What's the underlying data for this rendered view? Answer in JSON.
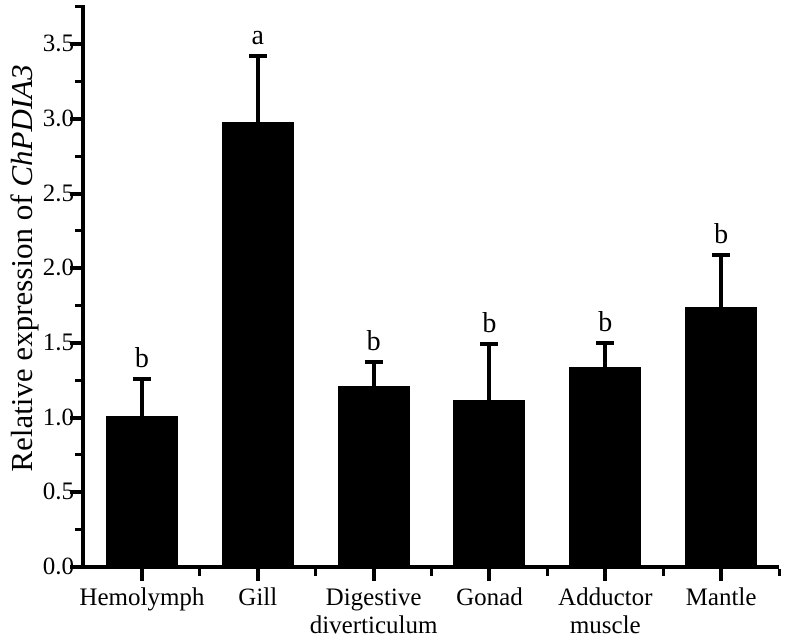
{
  "figure": {
    "background": "#ffffff",
    "axis_color": "#000000"
  },
  "chart_data": {
    "type": "bar",
    "title": "",
    "xlabel": "",
    "ylabel": "Relative expression of ChPDIA3",
    "ylabel_prefix": "Relative expression of ",
    "ylabel_italic": "ChPDIA3",
    "categories": [
      "Hemolymph",
      "Gill",
      "Digestive diverticulum",
      "Gonad",
      "Adductor muscle",
      "Mantle"
    ],
    "category_label_lines": [
      [
        "Hemolymph"
      ],
      [
        "Gill"
      ],
      [
        "Digestive",
        "diverticulum"
      ],
      [
        "Gonad"
      ],
      [
        "Adductor",
        "muscle"
      ],
      [
        "Mantle"
      ]
    ],
    "values": [
      1.01,
      2.98,
      1.21,
      1.12,
      1.34,
      1.74
    ],
    "errors": [
      0.25,
      0.44,
      0.16,
      0.37,
      0.16,
      0.35
    ],
    "error_tops": [
      1.26,
      3.42,
      1.37,
      1.49,
      1.5,
      2.09
    ],
    "sig_letters": [
      "b",
      "a",
      "b",
      "b",
      "b",
      "b"
    ],
    "bar_color": "#000000",
    "error_bar_color": "#000000",
    "ylim": [
      0,
      3.75
    ],
    "ytick_labels": [
      "0.0",
      "0.5",
      "1.0",
      "1.5",
      "2.0",
      "2.5",
      "3.0",
      "3.5"
    ],
    "ymajor_step": 0.5,
    "yminor_step": 0.25,
    "grid": false,
    "legend": "none"
  }
}
